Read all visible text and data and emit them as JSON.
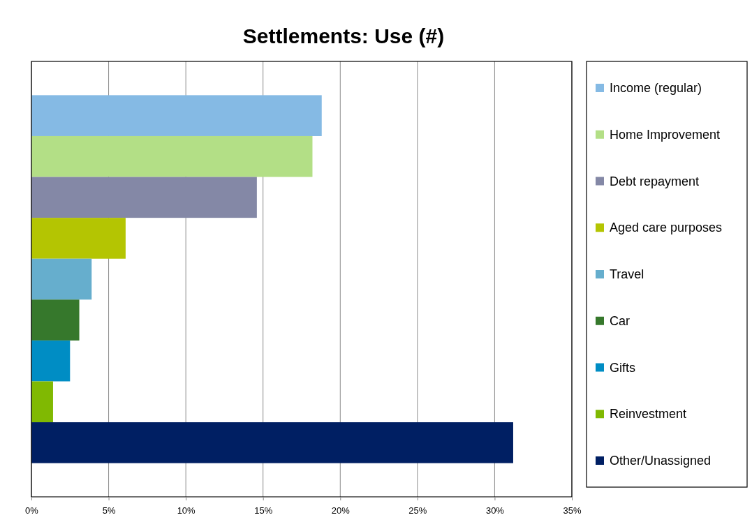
{
  "chart_data": {
    "type": "bar",
    "orientation": "horizontal",
    "title": "Settlements: Use (#)",
    "categories": [
      null
    ],
    "series": [
      {
        "name": "Income (regular)",
        "color": "#85bae4",
        "values": [
          18.8
        ]
      },
      {
        "name": "Home Improvement",
        "color": "#b3df86",
        "values": [
          18.2
        ]
      },
      {
        "name": "Debt repayment",
        "color": "#8488a6",
        "values": [
          14.6
        ]
      },
      {
        "name": "Aged care purposes",
        "color": "#b4c502",
        "values": [
          6.1
        ]
      },
      {
        "name": "Travel",
        "color": "#66aecd",
        "values": [
          3.9
        ]
      },
      {
        "name": "Car",
        "color": "#36782c",
        "values": [
          3.1
        ]
      },
      {
        "name": "Gifts",
        "color": "#008dc4",
        "values": [
          2.5
        ]
      },
      {
        "name": "Reinvestment",
        "color": "#80b902",
        "values": [
          1.4
        ]
      },
      {
        "name": "Other/Unassigned",
        "color": "#001f63",
        "values": [
          31.2
        ]
      }
    ],
    "xlim": [
      0,
      35
    ],
    "xticks": [
      {
        "value": 0,
        "label": "0%"
      },
      {
        "value": 5,
        "label": "5%"
      },
      {
        "value": 10,
        "label": "10%"
      },
      {
        "value": 15,
        "label": "15%"
      },
      {
        "value": 20,
        "label": "20%"
      },
      {
        "value": 25,
        "label": "25%"
      },
      {
        "value": 30,
        "label": "30%"
      },
      {
        "value": 35,
        "label": "35%"
      }
    ],
    "grid": "x",
    "legend": "right"
  }
}
